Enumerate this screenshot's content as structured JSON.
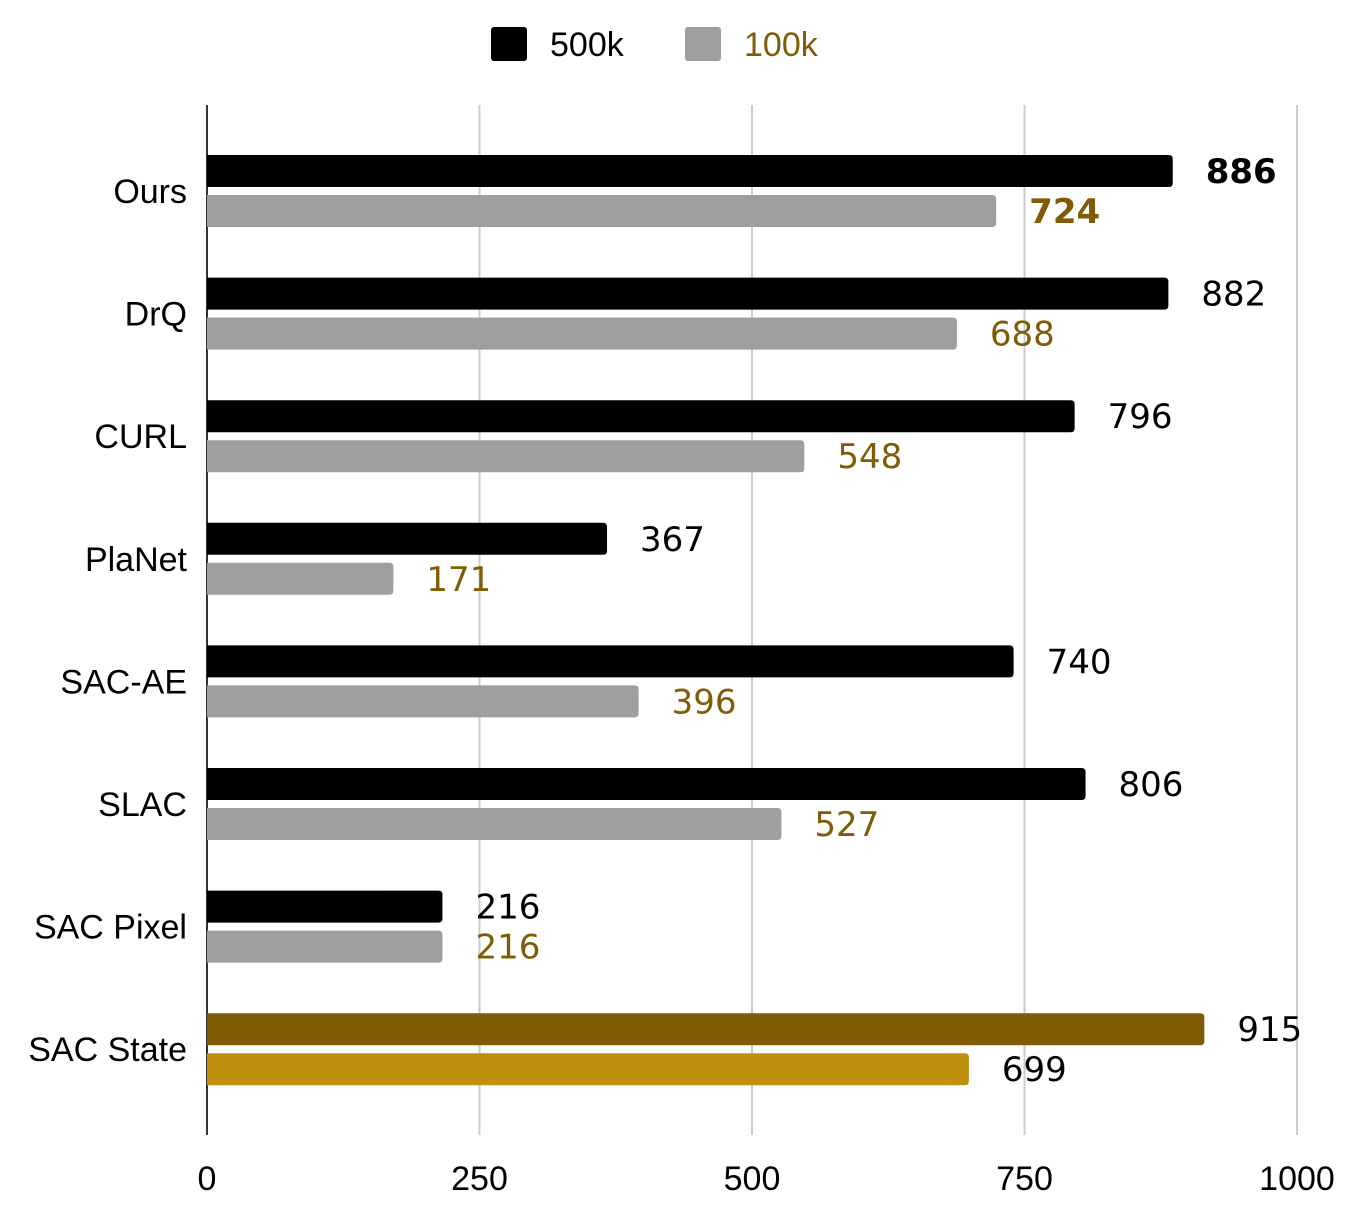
{
  "chart_data": {
    "type": "bar",
    "orientation": "horizontal",
    "title": "",
    "xlabel": "",
    "ylabel": "",
    "xlim": [
      0,
      1000
    ],
    "xticks": [
      "0",
      "250",
      "500",
      "750",
      "1000"
    ],
    "grid": true,
    "legend_position": "top-center",
    "categories": [
      "Ours",
      "DrQ",
      "CURL",
      "PlaNet",
      "SAC-AE",
      "SLAC",
      "SAC Pixel",
      "SAC State"
    ],
    "series": [
      {
        "name": "500k",
        "color": "#000000",
        "label_color": "#000000",
        "values": [
          886,
          882,
          796,
          367,
          740,
          806,
          216,
          915
        ]
      },
      {
        "name": "100k",
        "color": "#9e9e9e",
        "label_color": "#7f5c05",
        "values": [
          724,
          688,
          548,
          171,
          396,
          527,
          216,
          699
        ]
      }
    ],
    "value_labels": {
      "500k": [
        "886",
        "882",
        "796",
        "367",
        "740",
        "806",
        "216",
        "915"
      ],
      "100k": [
        "724",
        "688",
        "548",
        "171",
        "396",
        "527",
        "216",
        "699"
      ]
    },
    "bold_category": "Ours",
    "highlight_category": "SAC State",
    "highlight_colors": {
      "500k": "#7f5c05",
      "100k": "#bf900d"
    },
    "highlight_label_color": "#000000"
  }
}
